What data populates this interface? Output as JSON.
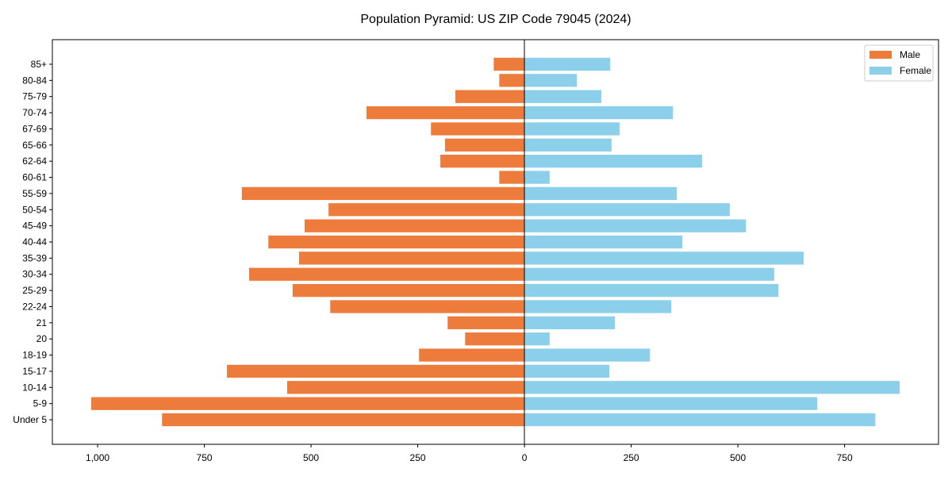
{
  "chart_data": {
    "type": "bar",
    "orientation": "horizontal",
    "title": "Population Pyramid: US ZIP Code 79045 (2024)",
    "xlabel": "",
    "ylabel": "",
    "categories": [
      "Under 5",
      "5-9",
      "10-14",
      "15-17",
      "18-19",
      "20",
      "21",
      "22-24",
      "25-29",
      "30-34",
      "35-39",
      "40-44",
      "45-49",
      "50-54",
      "55-59",
      "60-61",
      "62-64",
      "65-66",
      "67-69",
      "70-74",
      "75-79",
      "80-84",
      "85+"
    ],
    "series": [
      {
        "name": "Male",
        "color": "#ED7B3B",
        "values": [
          849,
          1015,
          556,
          697,
          247,
          139,
          180,
          455,
          543,
          645,
          528,
          600,
          515,
          459,
          662,
          59,
          197,
          186,
          219,
          370,
          162,
          59,
          72
        ]
      },
      {
        "name": "Female",
        "color": "#8BCFEA",
        "values": [
          822,
          686,
          879,
          199,
          294,
          59,
          212,
          344,
          595,
          585,
          654,
          370,
          519,
          481,
          357,
          59,
          416,
          204,
          223,
          348,
          180,
          123,
          201
        ]
      }
    ],
    "xlim": [
      -1106,
      970
    ],
    "xticks": [
      -1000,
      -750,
      -500,
      -250,
      0,
      250,
      500,
      750
    ],
    "xtick_labels": [
      "1,000",
      "750",
      "500",
      "250",
      "0",
      "250",
      "500",
      "750"
    ],
    "legend": {
      "placement": "top-right",
      "entries": [
        "Male",
        "Female"
      ]
    },
    "grid": false
  }
}
